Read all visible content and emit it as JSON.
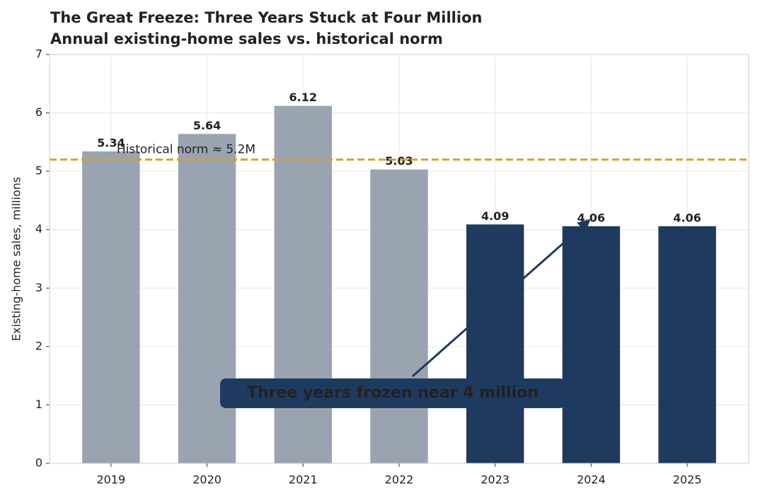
{
  "chart_data": {
    "type": "bar",
    "title": "The Great Freeze: Three Years Stuck at Four Million",
    "subtitle": "Annual existing-home sales vs. historical norm",
    "ylabel": "Existing-home sales, millions",
    "categories": [
      "2019",
      "2020",
      "2021",
      "2022",
      "2023",
      "2024",
      "2025"
    ],
    "values": [
      5.34,
      5.64,
      6.12,
      5.03,
      4.09,
      4.06,
      4.06
    ],
    "colors": [
      "#9aa4b0",
      "#9aa4b0",
      "#9aa4b0",
      "#9aa4b0",
      "#1f3a5f",
      "#1f3a5f",
      "#1f3a5f"
    ],
    "ylim": [
      0,
      7
    ],
    "yticks": [
      0,
      1,
      2,
      3,
      4,
      5,
      6,
      7
    ],
    "grid": true,
    "reference_line": {
      "value": 5.2,
      "label": "Historical norm ≈ 5.2M",
      "color": "#d9a02a"
    },
    "annotation": "Three years frozen near 4 million"
  }
}
